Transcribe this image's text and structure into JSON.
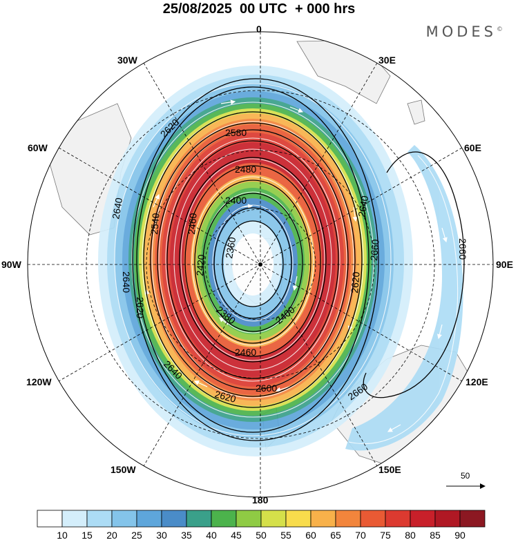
{
  "header": {
    "title": "25/08/2025  00 UTC  + 000 hrs",
    "brand": "MODES",
    "brand_mark": "©"
  },
  "longitude_labels": {
    "lon_0": "0",
    "lon_30e": "30E",
    "lon_60e": "60E",
    "lon_90e": "90E",
    "lon_120e": "120E",
    "lon_150e": "150E",
    "lon_180": "180",
    "lon_150w": "150W",
    "lon_120w": "120W",
    "lon_90w": "90W",
    "lon_60w": "60W",
    "lon_30w": "30W"
  },
  "contours": [
    {
      "label": "2360"
    },
    {
      "label": "2380"
    },
    {
      "label": "2400"
    },
    {
      "label": "2420"
    },
    {
      "label": "2460"
    },
    {
      "label": "2480"
    },
    {
      "label": "2540"
    },
    {
      "label": "2580"
    },
    {
      "label": "2600"
    },
    {
      "label": "2620"
    },
    {
      "label": "2640"
    },
    {
      "label": "2660"
    }
  ],
  "reference_vector": {
    "value": "50"
  },
  "colorbar": {
    "labels": [
      "10",
      "15",
      "20",
      "25",
      "30",
      "35",
      "40",
      "45",
      "50",
      "55",
      "60",
      "65",
      "70",
      "75",
      "80",
      "85",
      "90"
    ],
    "colors": [
      "#ffffff",
      "#d4eefb",
      "#acdcf5",
      "#84c4ea",
      "#5ea6db",
      "#4a8cc8",
      "#3aa08a",
      "#4cb34c",
      "#8fcb44",
      "#d5e04a",
      "#f8dc4c",
      "#f8b14a",
      "#f2853c",
      "#e95a34",
      "#dc3a30",
      "#c8202a",
      "#b01824",
      "#8c1822"
    ]
  }
}
